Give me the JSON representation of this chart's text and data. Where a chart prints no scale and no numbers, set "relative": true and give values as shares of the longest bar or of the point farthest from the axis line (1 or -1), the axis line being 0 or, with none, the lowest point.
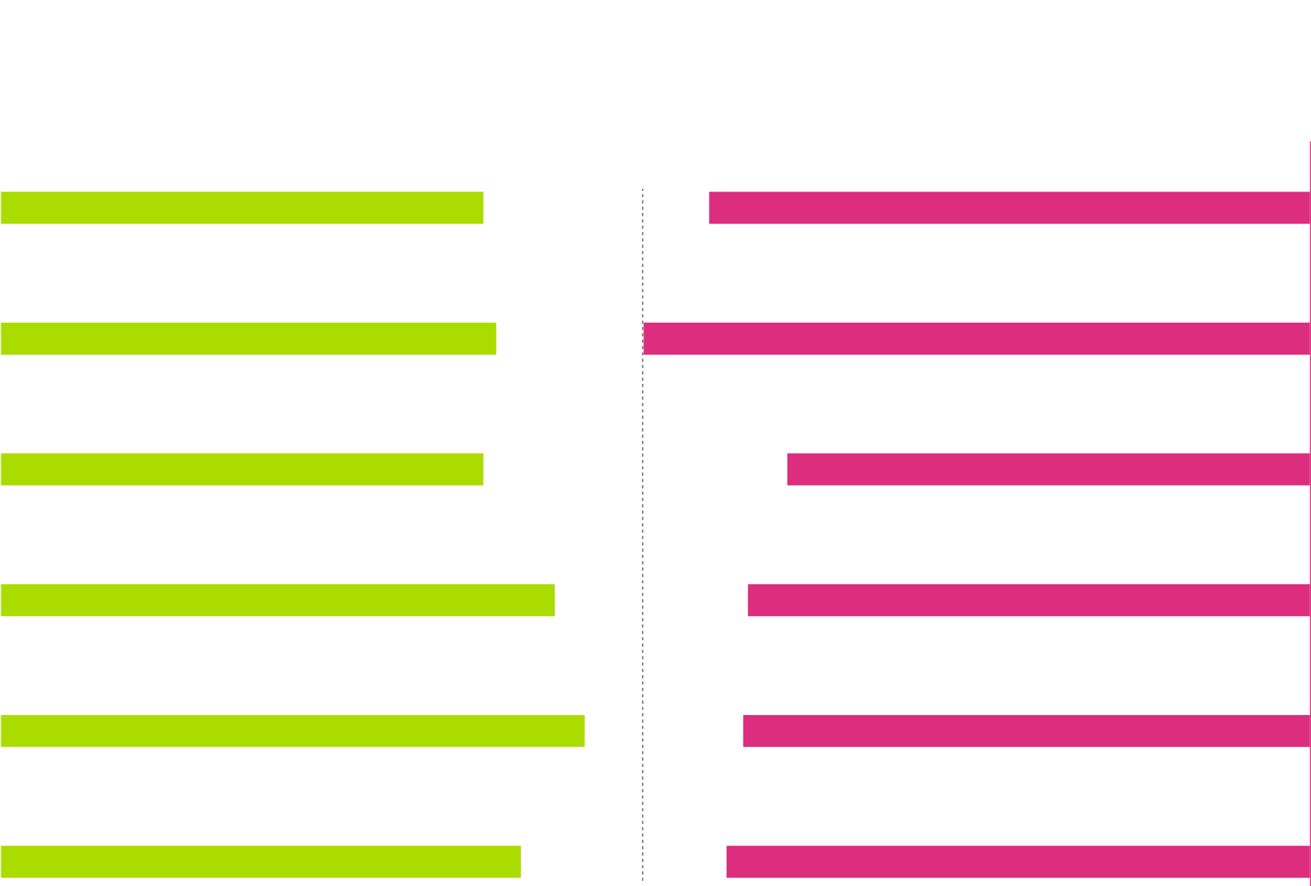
{
  "chart_data": [
    {
      "type": "bar",
      "orientation": "horizontal",
      "relative": true,
      "categories": [
        null,
        null,
        null,
        null,
        null,
        null
      ],
      "grid": false,
      "legend": false,
      "series": [
        {
          "color": "#aadc00",
          "values": [
            0.827,
            0.849,
            0.827,
            0.949,
            1,
            0.891
          ]
        }
      ]
    },
    {
      "type": "bar",
      "orientation": "horizontal",
      "relative": true,
      "categories": [
        null,
        null,
        null,
        null,
        null,
        null
      ],
      "grid": false,
      "legend": false,
      "series": [
        {
          "color": "#dc2d7f",
          "values": [
            0.902,
            1,
            0.785,
            0.844,
            0.851,
            0.876
          ]
        }
      ]
    }
  ]
}
